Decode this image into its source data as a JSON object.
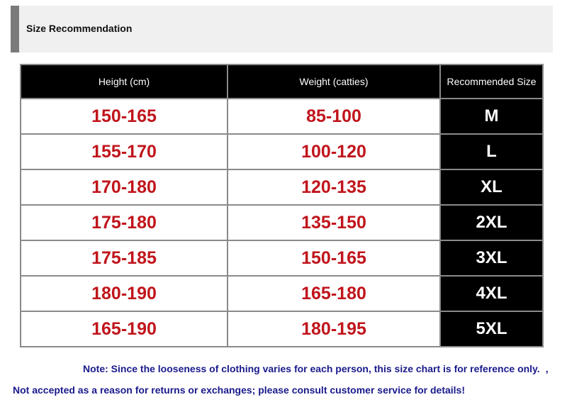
{
  "title": "Size Recommendation",
  "columns": [
    "Height (cm)",
    "Weight (catties)",
    "Recommended Size"
  ],
  "rows": [
    [
      "150-165",
      "85-100",
      "M"
    ],
    [
      "155-170",
      "100-120",
      "L"
    ],
    [
      "170-180",
      "120-135",
      "XL"
    ],
    [
      "175-180",
      "135-150",
      "2XL"
    ],
    [
      "175-185",
      "150-165",
      "3XL"
    ],
    [
      "180-190",
      "165-180",
      "4XL"
    ],
    [
      "165-190",
      "180-195",
      "5XL"
    ]
  ],
  "note1": "Note: Since the looseness of clothing varies for each person, this size chart is for reference only.",
  "note1_suffix": ",",
  "note2": "Not accepted as a reason for returns or exchanges; please consult customer service for details!"
}
